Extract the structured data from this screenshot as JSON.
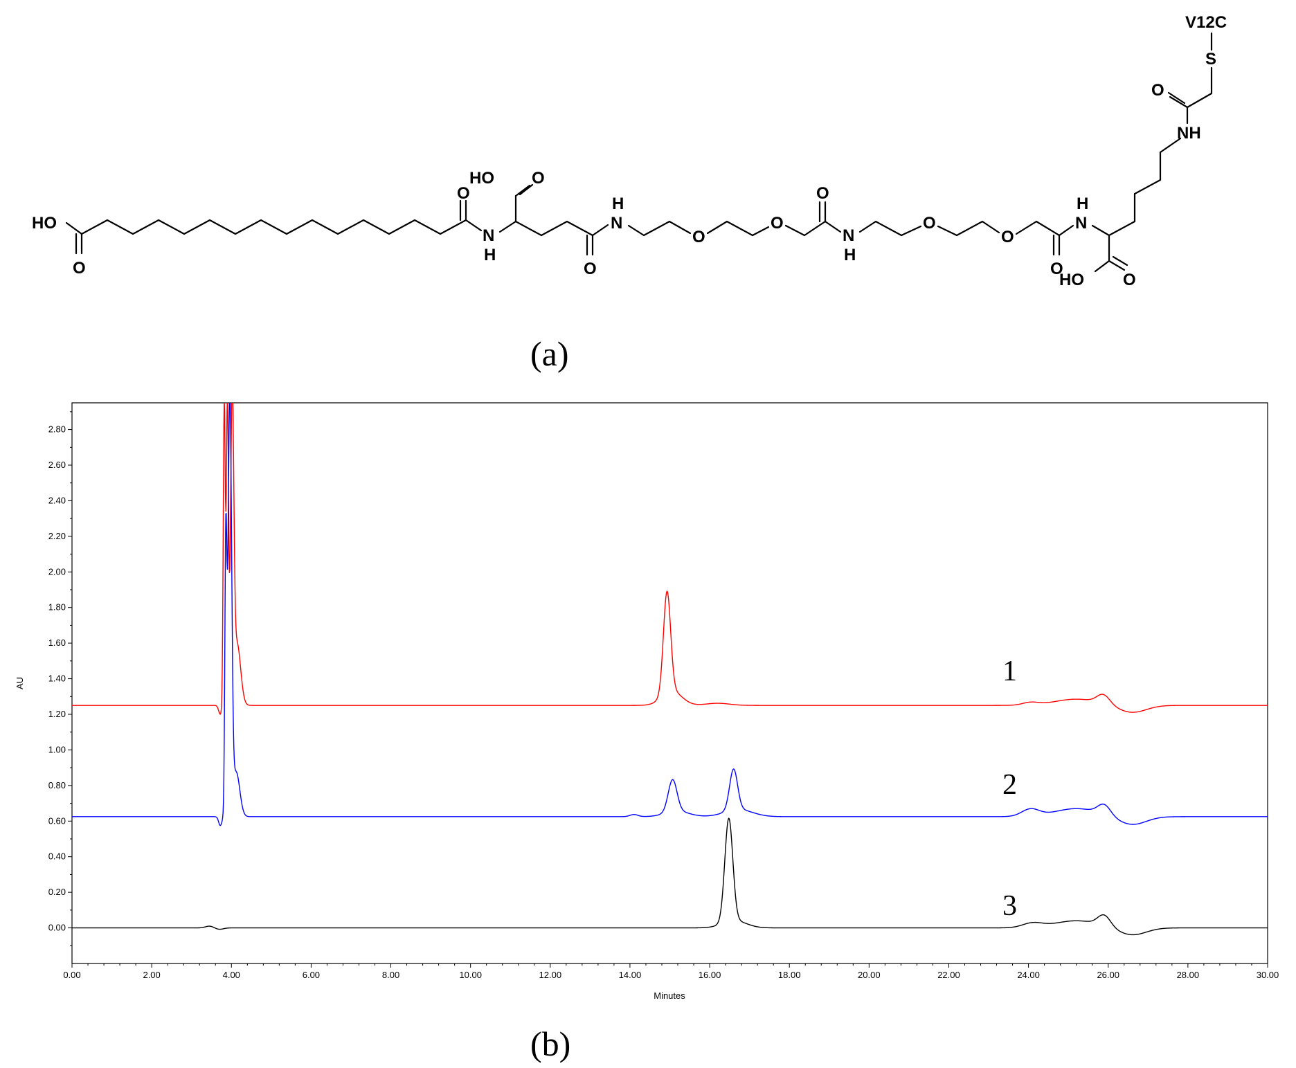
{
  "panel_a": {
    "label": "(a)",
    "atoms": {
      "ho_left": "HO",
      "o_left": "O",
      "o_amide1": "O",
      "nh_1": "N",
      "h_1": "H",
      "ho_glu": "HO",
      "o_glu": "O",
      "o_amide2": "O",
      "nh_2": "N",
      "h_2": "H",
      "o_ether1": "O",
      "o_ether2": "O",
      "o_amide3": "O",
      "nh_3": "N",
      "h_3": "H",
      "o_ether3": "O",
      "o_ether4": "O",
      "o_amide4": "O",
      "nh_4": "N",
      "h_4": "H",
      "ho_lys": "HO",
      "o_lys": "O",
      "nh_5": "NH",
      "o_acetyl": "O",
      "s_atom": "S",
      "v12c": "V12C"
    }
  },
  "panel_b": {
    "label": "(b)"
  },
  "chart_data": {
    "type": "line",
    "xlabel": "Minutes",
    "ylabel": "AU",
    "xlim": [
      0,
      30
    ],
    "ylim": [
      -0.2,
      2.95
    ],
    "x_ticks": [
      0,
      2,
      4,
      6,
      8,
      10,
      12,
      14,
      16,
      18,
      20,
      22,
      24,
      26,
      28,
      30
    ],
    "x_tick_labels": [
      "0.00",
      "2.00",
      "4.00",
      "6.00",
      "8.00",
      "10.00",
      "12.00",
      "14.00",
      "16.00",
      "18.00",
      "20.00",
      "22.00",
      "24.00",
      "26.00",
      "28.00",
      "30.00"
    ],
    "y_ticks": [
      0,
      0.2,
      0.4,
      0.6,
      0.8,
      1.0,
      1.2,
      1.4,
      1.6,
      1.8,
      2.0,
      2.2,
      2.4,
      2.6,
      2.8
    ],
    "y_tick_labels": [
      "0.00",
      "0.20",
      "0.40",
      "0.60",
      "0.80",
      "1.00",
      "1.20",
      "1.40",
      "1.60",
      "1.80",
      "2.00",
      "2.20",
      "2.40",
      "2.60",
      "2.80"
    ],
    "grid": false,
    "series": [
      {
        "label": "1",
        "color": "#ff0000",
        "baseline": 1.25,
        "peaks": [
          {
            "t": 3.72,
            "h": -0.05,
            "w": 0.04
          },
          {
            "t": 3.82,
            "h": 1.7,
            "w": 0.025
          },
          {
            "t": 3.9,
            "h": 1.7,
            "w": 0.028
          },
          {
            "t": 4.02,
            "h": 1.67,
            "w": 0.04
          },
          {
            "t": 4.14,
            "h": 0.35,
            "w": 0.09
          },
          {
            "t": 14.93,
            "h": 0.57,
            "w": 0.09
          },
          {
            "t": 15.05,
            "h": 0.08,
            "w": 0.25
          },
          {
            "t": 16.2,
            "h": 0.012,
            "w": 0.3
          },
          {
            "t": 24.05,
            "h": 0.015,
            "w": 0.2
          },
          {
            "t": 25.2,
            "h": 0.035,
            "w": 0.55
          },
          {
            "t": 25.88,
            "h": 0.05,
            "w": 0.16
          },
          {
            "t": 26.6,
            "h": -0.04,
            "w": 0.35
          }
        ]
      },
      {
        "label": "2",
        "color": "#0000ff",
        "baseline": 0.625,
        "peaks": [
          {
            "t": 3.72,
            "h": -0.05,
            "w": 0.04
          },
          {
            "t": 3.86,
            "h": 1.5,
            "w": 0.025
          },
          {
            "t": 3.96,
            "h": 2.33,
            "w": 0.045
          },
          {
            "t": 4.12,
            "h": 0.25,
            "w": 0.09
          },
          {
            "t": 14.1,
            "h": 0.012,
            "w": 0.1
          },
          {
            "t": 15.07,
            "h": 0.18,
            "w": 0.11
          },
          {
            "t": 15.18,
            "h": 0.03,
            "w": 0.3
          },
          {
            "t": 16.6,
            "h": 0.23,
            "w": 0.1
          },
          {
            "t": 16.72,
            "h": 0.04,
            "w": 0.35
          },
          {
            "t": 24.05,
            "h": 0.04,
            "w": 0.22
          },
          {
            "t": 25.2,
            "h": 0.045,
            "w": 0.55
          },
          {
            "t": 25.9,
            "h": 0.055,
            "w": 0.16
          },
          {
            "t": 26.6,
            "h": -0.045,
            "w": 0.35
          }
        ]
      },
      {
        "label": "3",
        "color": "#000000",
        "baseline": 0.0,
        "peaks": [
          {
            "t": 3.45,
            "h": 0.01,
            "w": 0.1
          },
          {
            "t": 3.7,
            "h": -0.008,
            "w": 0.1
          },
          {
            "t": 16.48,
            "h": 0.58,
            "w": 0.1
          },
          {
            "t": 16.62,
            "h": 0.04,
            "w": 0.3
          },
          {
            "t": 24.1,
            "h": 0.025,
            "w": 0.25
          },
          {
            "t": 25.2,
            "h": 0.04,
            "w": 0.55
          },
          {
            "t": 25.9,
            "h": 0.06,
            "w": 0.16
          },
          {
            "t": 26.6,
            "h": -0.04,
            "w": 0.35
          }
        ]
      }
    ]
  }
}
